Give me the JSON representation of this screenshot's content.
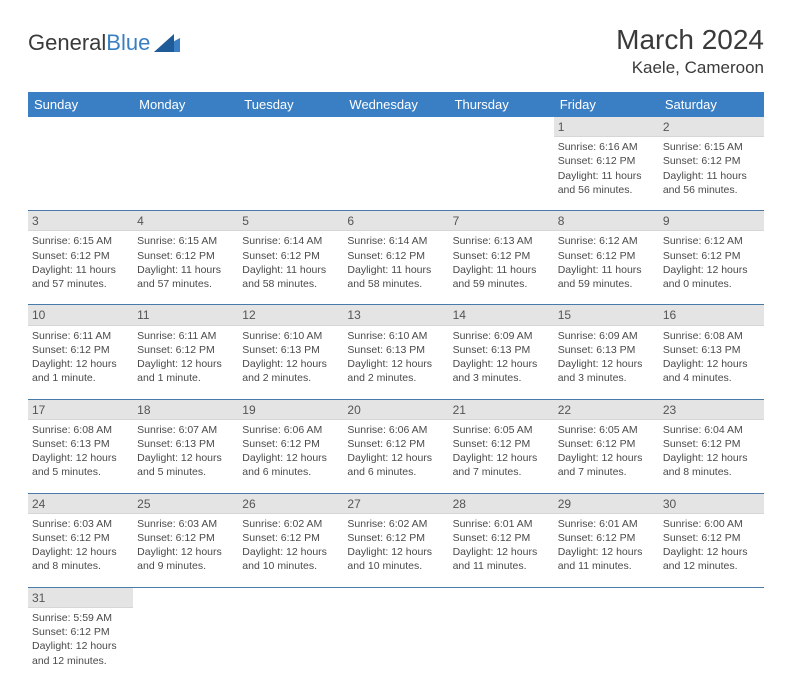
{
  "header": {
    "logo_text_1": "General",
    "logo_text_2": "Blue",
    "month_title": "March 2024",
    "location": "Kaele, Cameroon"
  },
  "colors": {
    "header_bg": "#3a7fc4",
    "header_text": "#ffffff",
    "daynum_bg": "#e4e4e4",
    "row_border": "#4a7aa8",
    "body_text": "#4a4a4a"
  },
  "weekdays": [
    "Sunday",
    "Monday",
    "Tuesday",
    "Wednesday",
    "Thursday",
    "Friday",
    "Saturday"
  ],
  "weeks": [
    {
      "nums": [
        "",
        "",
        "",
        "",
        "",
        "1",
        "2"
      ],
      "cells": [
        null,
        null,
        null,
        null,
        null,
        {
          "sunrise": "Sunrise: 6:16 AM",
          "sunset": "Sunset: 6:12 PM",
          "daylight": "Daylight: 11 hours and 56 minutes."
        },
        {
          "sunrise": "Sunrise: 6:15 AM",
          "sunset": "Sunset: 6:12 PM",
          "daylight": "Daylight: 11 hours and 56 minutes."
        }
      ]
    },
    {
      "nums": [
        "3",
        "4",
        "5",
        "6",
        "7",
        "8",
        "9"
      ],
      "cells": [
        {
          "sunrise": "Sunrise: 6:15 AM",
          "sunset": "Sunset: 6:12 PM",
          "daylight": "Daylight: 11 hours and 57 minutes."
        },
        {
          "sunrise": "Sunrise: 6:15 AM",
          "sunset": "Sunset: 6:12 PM",
          "daylight": "Daylight: 11 hours and 57 minutes."
        },
        {
          "sunrise": "Sunrise: 6:14 AM",
          "sunset": "Sunset: 6:12 PM",
          "daylight": "Daylight: 11 hours and 58 minutes."
        },
        {
          "sunrise": "Sunrise: 6:14 AM",
          "sunset": "Sunset: 6:12 PM",
          "daylight": "Daylight: 11 hours and 58 minutes."
        },
        {
          "sunrise": "Sunrise: 6:13 AM",
          "sunset": "Sunset: 6:12 PM",
          "daylight": "Daylight: 11 hours and 59 minutes."
        },
        {
          "sunrise": "Sunrise: 6:12 AM",
          "sunset": "Sunset: 6:12 PM",
          "daylight": "Daylight: 11 hours and 59 minutes."
        },
        {
          "sunrise": "Sunrise: 6:12 AM",
          "sunset": "Sunset: 6:12 PM",
          "daylight": "Daylight: 12 hours and 0 minutes."
        }
      ]
    },
    {
      "nums": [
        "10",
        "11",
        "12",
        "13",
        "14",
        "15",
        "16"
      ],
      "cells": [
        {
          "sunrise": "Sunrise: 6:11 AM",
          "sunset": "Sunset: 6:12 PM",
          "daylight": "Daylight: 12 hours and 1 minute."
        },
        {
          "sunrise": "Sunrise: 6:11 AM",
          "sunset": "Sunset: 6:12 PM",
          "daylight": "Daylight: 12 hours and 1 minute."
        },
        {
          "sunrise": "Sunrise: 6:10 AM",
          "sunset": "Sunset: 6:13 PM",
          "daylight": "Daylight: 12 hours and 2 minutes."
        },
        {
          "sunrise": "Sunrise: 6:10 AM",
          "sunset": "Sunset: 6:13 PM",
          "daylight": "Daylight: 12 hours and 2 minutes."
        },
        {
          "sunrise": "Sunrise: 6:09 AM",
          "sunset": "Sunset: 6:13 PM",
          "daylight": "Daylight: 12 hours and 3 minutes."
        },
        {
          "sunrise": "Sunrise: 6:09 AM",
          "sunset": "Sunset: 6:13 PM",
          "daylight": "Daylight: 12 hours and 3 minutes."
        },
        {
          "sunrise": "Sunrise: 6:08 AM",
          "sunset": "Sunset: 6:13 PM",
          "daylight": "Daylight: 12 hours and 4 minutes."
        }
      ]
    },
    {
      "nums": [
        "17",
        "18",
        "19",
        "20",
        "21",
        "22",
        "23"
      ],
      "cells": [
        {
          "sunrise": "Sunrise: 6:08 AM",
          "sunset": "Sunset: 6:13 PM",
          "daylight": "Daylight: 12 hours and 5 minutes."
        },
        {
          "sunrise": "Sunrise: 6:07 AM",
          "sunset": "Sunset: 6:13 PM",
          "daylight": "Daylight: 12 hours and 5 minutes."
        },
        {
          "sunrise": "Sunrise: 6:06 AM",
          "sunset": "Sunset: 6:12 PM",
          "daylight": "Daylight: 12 hours and 6 minutes."
        },
        {
          "sunrise": "Sunrise: 6:06 AM",
          "sunset": "Sunset: 6:12 PM",
          "daylight": "Daylight: 12 hours and 6 minutes."
        },
        {
          "sunrise": "Sunrise: 6:05 AM",
          "sunset": "Sunset: 6:12 PM",
          "daylight": "Daylight: 12 hours and 7 minutes."
        },
        {
          "sunrise": "Sunrise: 6:05 AM",
          "sunset": "Sunset: 6:12 PM",
          "daylight": "Daylight: 12 hours and 7 minutes."
        },
        {
          "sunrise": "Sunrise: 6:04 AM",
          "sunset": "Sunset: 6:12 PM",
          "daylight": "Daylight: 12 hours and 8 minutes."
        }
      ]
    },
    {
      "nums": [
        "24",
        "25",
        "26",
        "27",
        "28",
        "29",
        "30"
      ],
      "cells": [
        {
          "sunrise": "Sunrise: 6:03 AM",
          "sunset": "Sunset: 6:12 PM",
          "daylight": "Daylight: 12 hours and 8 minutes."
        },
        {
          "sunrise": "Sunrise: 6:03 AM",
          "sunset": "Sunset: 6:12 PM",
          "daylight": "Daylight: 12 hours and 9 minutes."
        },
        {
          "sunrise": "Sunrise: 6:02 AM",
          "sunset": "Sunset: 6:12 PM",
          "daylight": "Daylight: 12 hours and 10 minutes."
        },
        {
          "sunrise": "Sunrise: 6:02 AM",
          "sunset": "Sunset: 6:12 PM",
          "daylight": "Daylight: 12 hours and 10 minutes."
        },
        {
          "sunrise": "Sunrise: 6:01 AM",
          "sunset": "Sunset: 6:12 PM",
          "daylight": "Daylight: 12 hours and 11 minutes."
        },
        {
          "sunrise": "Sunrise: 6:01 AM",
          "sunset": "Sunset: 6:12 PM",
          "daylight": "Daylight: 12 hours and 11 minutes."
        },
        {
          "sunrise": "Sunrise: 6:00 AM",
          "sunset": "Sunset: 6:12 PM",
          "daylight": "Daylight: 12 hours and 12 minutes."
        }
      ]
    },
    {
      "nums": [
        "31",
        "",
        "",
        "",
        "",
        "",
        ""
      ],
      "cells": [
        {
          "sunrise": "Sunrise: 5:59 AM",
          "sunset": "Sunset: 6:12 PM",
          "daylight": "Daylight: 12 hours and 12 minutes."
        },
        null,
        null,
        null,
        null,
        null,
        null
      ]
    }
  ]
}
